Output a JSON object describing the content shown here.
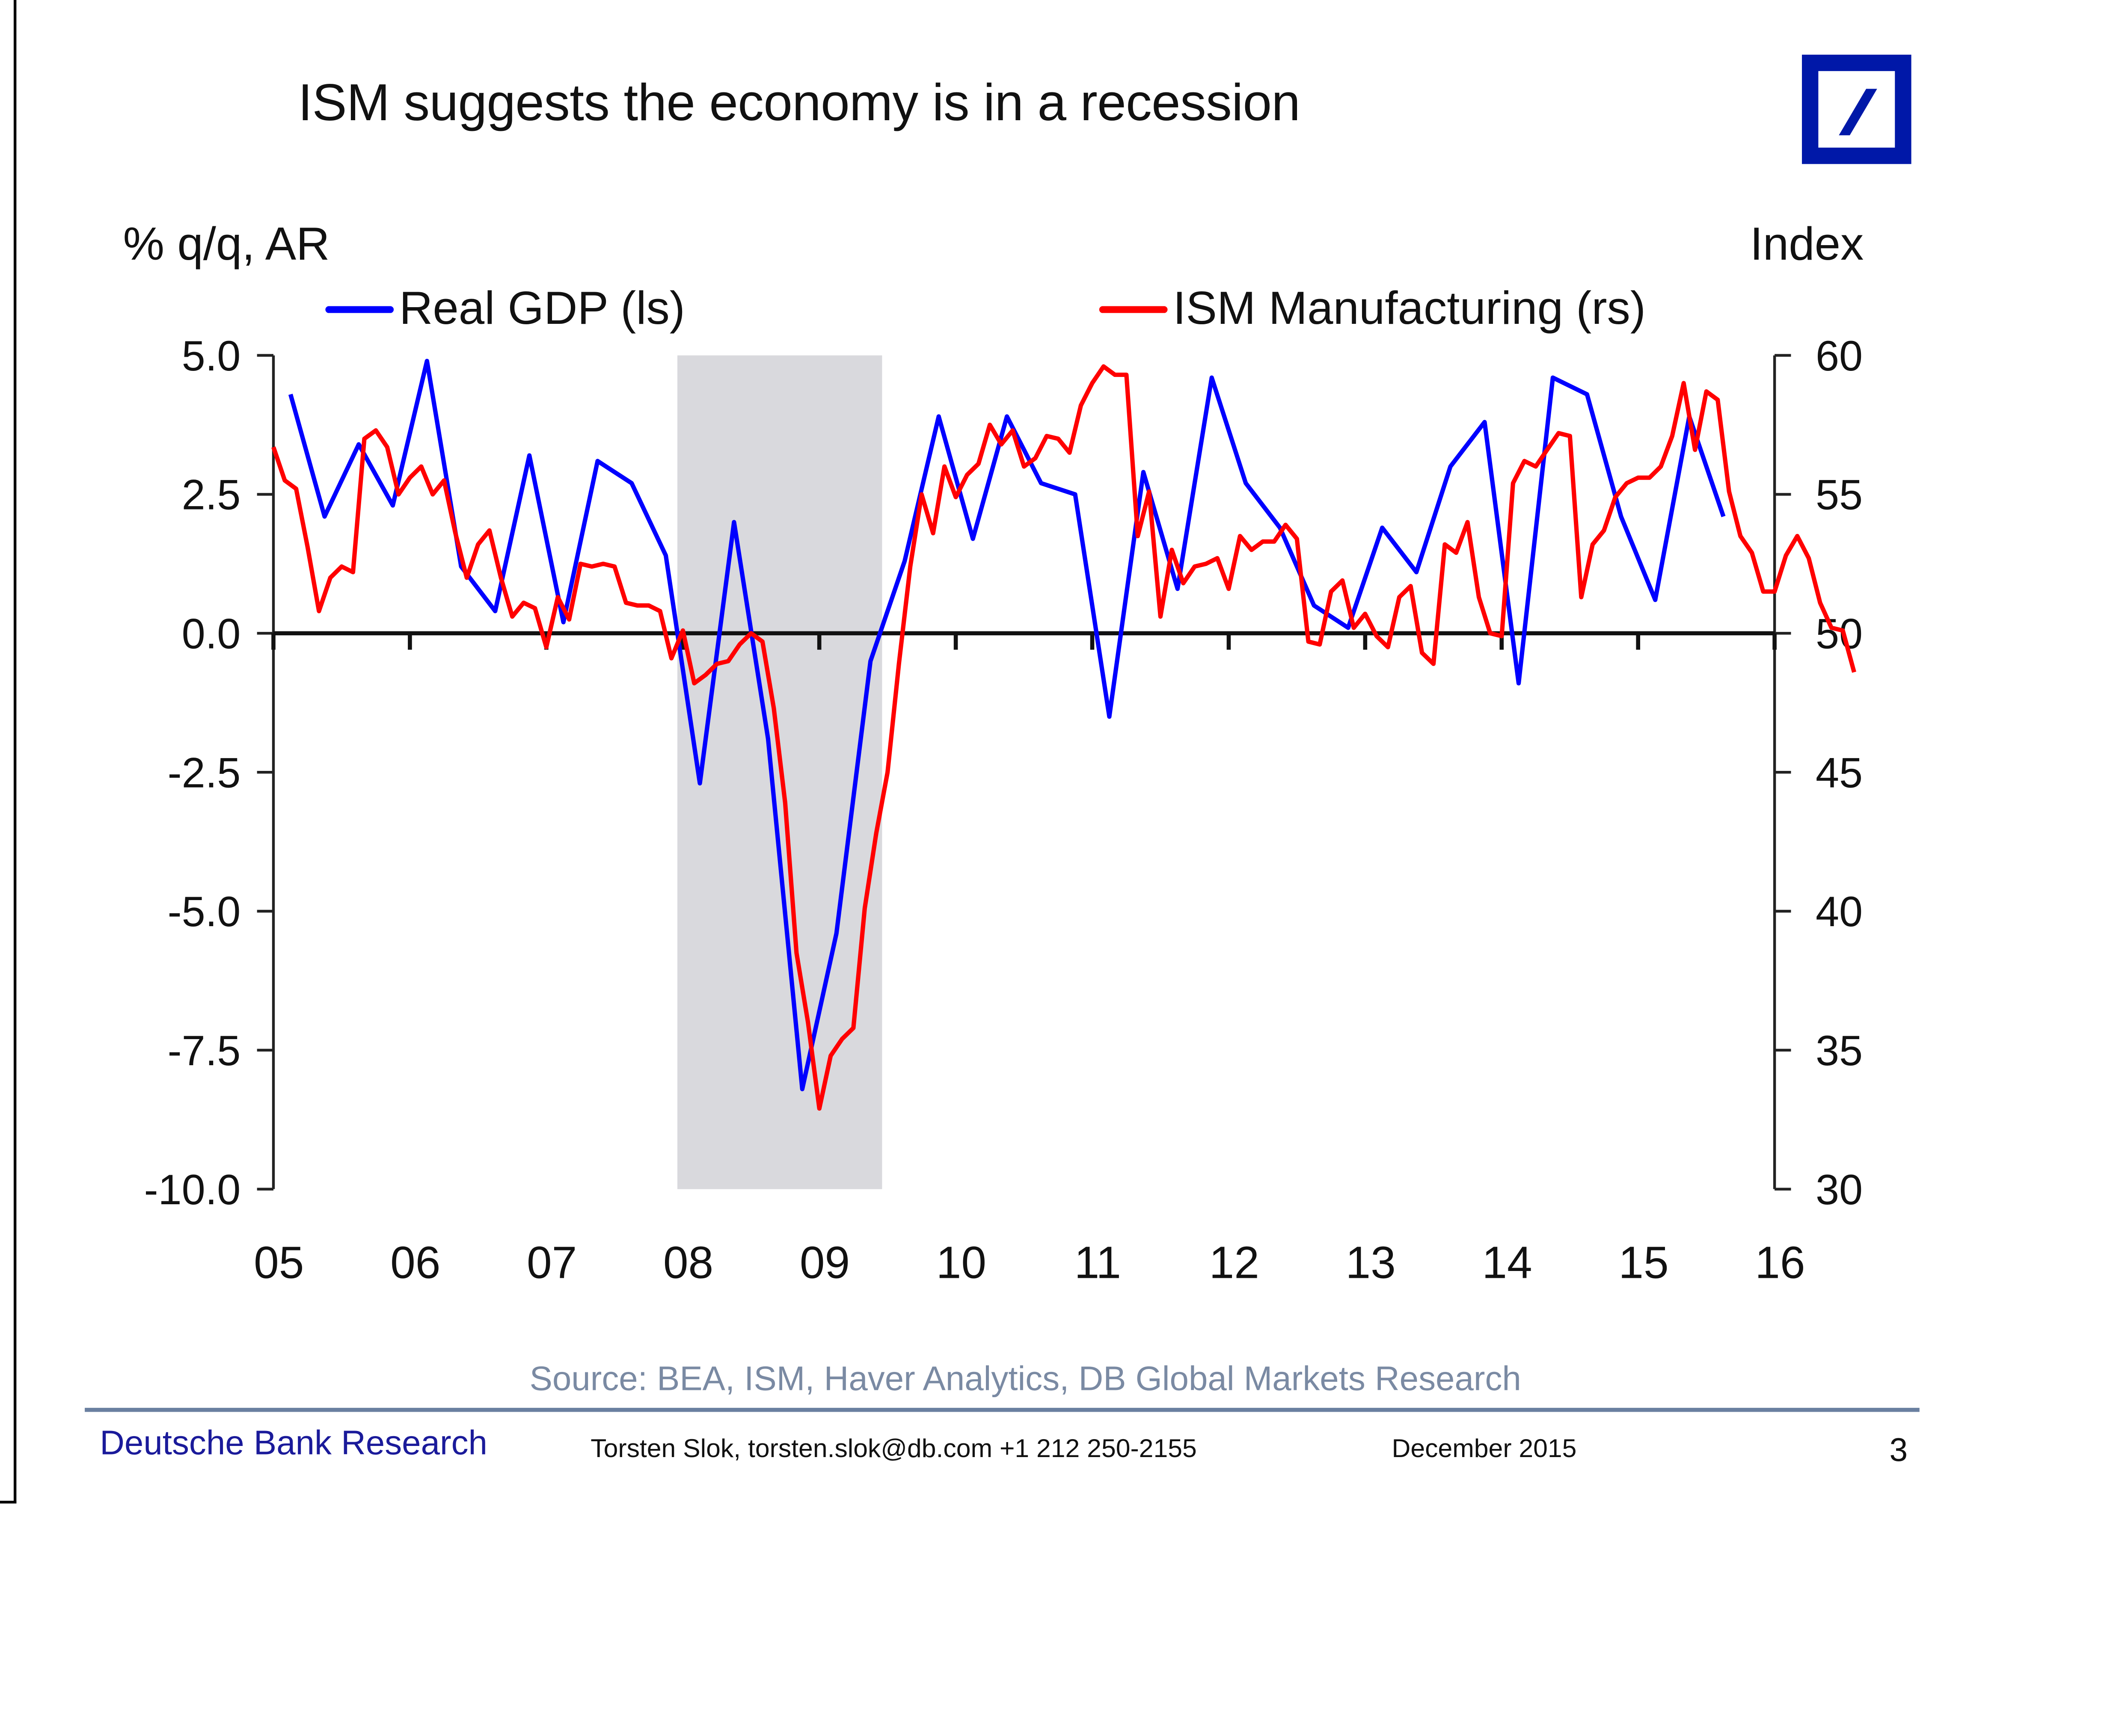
{
  "slide": {
    "title": "ISM suggests the economy is in a recession",
    "logo_icon": "deutsche-bank-slash-logo",
    "source": "Source: BEA, ISM, Haver Analytics, DB Global Markets Research",
    "footer": {
      "brand": "Deutsche Bank Research",
      "contact": "Torsten Slok, torsten.slok@db.com  +1 212 250-2155",
      "date": "December 2015",
      "page_number": "3"
    }
  },
  "colors": {
    "gdp": "#0000ff",
    "ism": "#ff0000",
    "recession": "#d9d9dd",
    "logo": "#0018a8"
  },
  "chart_data": {
    "type": "line",
    "title": "ISM suggests the economy is in a recession",
    "ylabel_left": "% q/q, AR",
    "ylabel_right": "Index",
    "xlabel": "",
    "x_ticks": [
      "05",
      "06",
      "07",
      "08",
      "09",
      "10",
      "11",
      "12",
      "13",
      "14",
      "15",
      "16"
    ],
    "x_range": [
      2005,
      2016
    ],
    "ylim_left": [
      -10,
      5
    ],
    "ylim_right": [
      30,
      60
    ],
    "yticks_left": [
      "5.0",
      "2.5",
      "0.0",
      "-2.5",
      "-5.0",
      "-7.5",
      "-10.0"
    ],
    "yticks_right": [
      "60",
      "55",
      "50",
      "45",
      "40",
      "35",
      "30"
    ],
    "grid": false,
    "legend_position": "top",
    "recession_shading": {
      "start": 2007.96,
      "end": 2009.46
    },
    "series": [
      {
        "name": "Real GDP (ls)",
        "axis": "left",
        "color": "#0000ff",
        "frequency": "quarterly",
        "start": 2005.125,
        "values": [
          4.3,
          2.1,
          3.4,
          2.3,
          4.9,
          1.2,
          0.4,
          3.2,
          0.2,
          3.1,
          2.7,
          1.4,
          -2.7,
          2.0,
          -1.9,
          -8.2,
          -5.4,
          -0.5,
          1.3,
          3.9,
          1.7,
          3.9,
          2.7,
          2.5,
          -1.5,
          2.9,
          0.8,
          4.6,
          2.7,
          1.9,
          0.5,
          0.1,
          1.9,
          1.1,
          3.0,
          3.8,
          -0.9,
          4.6,
          4.3,
          2.1,
          0.6,
          3.9,
          2.1
        ]
      },
      {
        "name": "ISM Manufacturing (rs)",
        "axis": "right",
        "color": "#ff0000",
        "frequency": "monthly",
        "start": 2005.0,
        "values": [
          56.7,
          55.5,
          55.2,
          53.1,
          50.8,
          52.0,
          52.4,
          52.2,
          57.0,
          57.3,
          56.7,
          55.0,
          55.6,
          56.0,
          55.0,
          55.5,
          53.6,
          52.0,
          53.2,
          53.7,
          52.0,
          50.6,
          51.1,
          50.9,
          49.5,
          51.3,
          50.5,
          52.5,
          52.4,
          52.5,
          52.4,
          51.1,
          51.0,
          51.0,
          50.8,
          49.1,
          50.1,
          48.2,
          48.5,
          48.9,
          49.0,
          49.6,
          50.0,
          49.7,
          47.3,
          43.9,
          38.5,
          36.0,
          32.9,
          34.8,
          35.4,
          35.8,
          40.1,
          42.8,
          45.0,
          48.9,
          52.4,
          55.0,
          53.6,
          56.0,
          54.9,
          55.7,
          56.1,
          57.5,
          56.8,
          57.3,
          56.0,
          56.3,
          57.1,
          57.0,
          56.5,
          58.2,
          59.0,
          59.6,
          59.3,
          59.3,
          53.5,
          55.1,
          50.6,
          53.0,
          51.8,
          52.4,
          52.5,
          52.7,
          51.6,
          53.5,
          53.0,
          53.3,
          53.3,
          53.9,
          53.4,
          49.7,
          49.6,
          51.5,
          51.9,
          50.2,
          50.7,
          49.9,
          49.5,
          51.3,
          51.7,
          49.3,
          48.9,
          53.2,
          52.9,
          54.0,
          51.3,
          50.0,
          49.9,
          55.4,
          56.2,
          56.0,
          56.6,
          57.2,
          57.1,
          51.3,
          53.2,
          53.7,
          54.9,
          55.4,
          55.6,
          55.6,
          56.0,
          57.1,
          59.0,
          56.6,
          58.7,
          58.4,
          55.1,
          53.5,
          52.9,
          51.5,
          51.5,
          52.8,
          53.5,
          52.7,
          51.1,
          50.2,
          50.1,
          48.6
        ]
      }
    ]
  }
}
